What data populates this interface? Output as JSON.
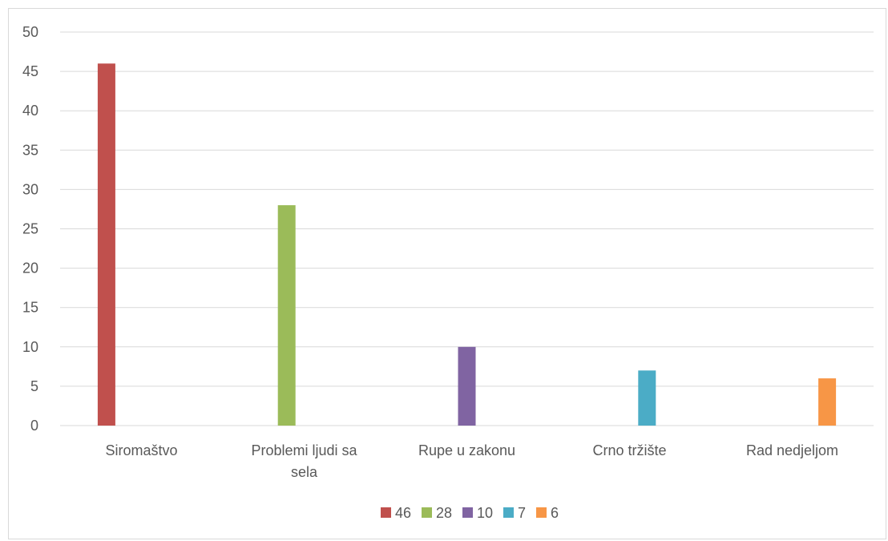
{
  "chart_data": {
    "type": "bar",
    "categories": [
      "Siromaštvo",
      "Problemi ljudi sa sela",
      "Rupe u zakonu",
      "Crno tržište",
      "Rad nedjeljom"
    ],
    "series": [
      {
        "name": "46",
        "color": "#c0504d",
        "values": [
          46,
          0,
          0,
          0,
          0
        ]
      },
      {
        "name": "28",
        "color": "#9bbb59",
        "values": [
          0,
          28,
          0,
          0,
          0
        ]
      },
      {
        "name": "10",
        "color": "#8064a2",
        "values": [
          0,
          0,
          10,
          0,
          0
        ]
      },
      {
        "name": "7",
        "color": "#4bacc6",
        "values": [
          0,
          0,
          0,
          7,
          0
        ]
      },
      {
        "name": "6",
        "color": "#f79646",
        "values": [
          0,
          0,
          0,
          0,
          6
        ]
      }
    ],
    "ylim": [
      0,
      50
    ],
    "yticks": [
      0,
      5,
      10,
      15,
      20,
      25,
      30,
      35,
      40,
      45,
      50
    ],
    "grid": true,
    "legend_position": "bottom",
    "title": "",
    "xlabel": "",
    "ylabel": ""
  }
}
